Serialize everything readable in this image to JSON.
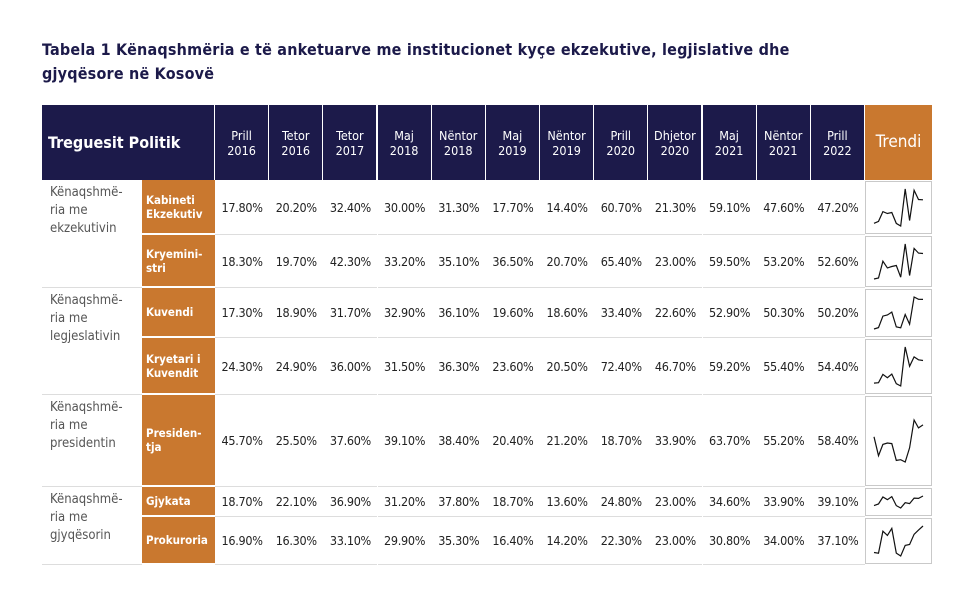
{
  "title": "Tabela 1 Kënaqshmëria e të anketuarve me institucionet kyçe ekzekutive, legjislative dhe gjyqësore në Kosovë",
  "table": {
    "header": {
      "label": "Treguesit Politik",
      "periods": [
        "Prill 2016",
        "Tetor 2016",
        "Tetor 2017",
        "Maj 2018",
        "Nëntor 2018",
        "Maj 2019",
        "Nëntor 2019",
        "Prill 2020",
        "Dhjetor 2020",
        "Maj 2021",
        "Nëntor 2021",
        "Prill 2022"
      ],
      "trend": "Trendi"
    },
    "groups": [
      {
        "label": "Kënaqshmë-ria me ekzekutivin",
        "rows": [
          {
            "label": "Kabineti Ekzekutiv",
            "values": [
              "17.80%",
              "20.20%",
              "32.40%",
              "30.00%",
              "31.30%",
              "17.70%",
              "14.40%",
              "60.70%",
              "21.30%",
              "59.10%",
              "47.60%",
              "47.20%"
            ]
          },
          {
            "label": "Kryemini-stri",
            "values": [
              "18.30%",
              "19.70%",
              "42.30%",
              "33.20%",
              "35.10%",
              "36.50%",
              "20.70%",
              "65.40%",
              "23.00%",
              "59.50%",
              "53.20%",
              "52.60%"
            ]
          }
        ]
      },
      {
        "label": "Kënaqshmë-ria me legjeslativin",
        "rows": [
          {
            "label": "Kuvendi",
            "values": [
              "17.30%",
              "18.90%",
              "31.70%",
              "32.90%",
              "36.10%",
              "19.60%",
              "18.60%",
              "33.40%",
              "22.60%",
              "52.90%",
              "50.30%",
              "50.20%"
            ]
          },
          {
            "label": "Kryetari i Kuvendit",
            "values": [
              "24.30%",
              "24.90%",
              "36.00%",
              "31.50%",
              "36.30%",
              "23.60%",
              "20.50%",
              "72.40%",
              "46.70%",
              "59.20%",
              "55.40%",
              "54.40%"
            ]
          }
        ]
      },
      {
        "label": "Kënaqshmë-ria me presidentin",
        "rows": [
          {
            "label": "Presiden-tja",
            "values": [
              "45.70%",
              "25.50%",
              "37.60%",
              "39.10%",
              "38.40%",
              "20.40%",
              "21.20%",
              "18.70%",
              "33.90%",
              "63.70%",
              "55.20%",
              "58.40%"
            ]
          }
        ]
      },
      {
        "label": "Kënaqshmë-ria me gjyqësorin",
        "rows": [
          {
            "label": "Gjykata",
            "values": [
              "18.70%",
              "22.10%",
              "36.90%",
              "31.20%",
              "37.80%",
              "18.70%",
              "13.60%",
              "24.80%",
              "23.00%",
              "34.60%",
              "33.90%",
              "39.10%"
            ]
          },
          {
            "label": "Prokuroria",
            "values": [
              "16.90%",
              "16.30%",
              "33.10%",
              "29.90%",
              "35.30%",
              "16.40%",
              "14.20%",
              "22.30%",
              "23.00%",
              "30.80%",
              "34.00%",
              "37.10%"
            ]
          }
        ]
      }
    ]
  }
}
